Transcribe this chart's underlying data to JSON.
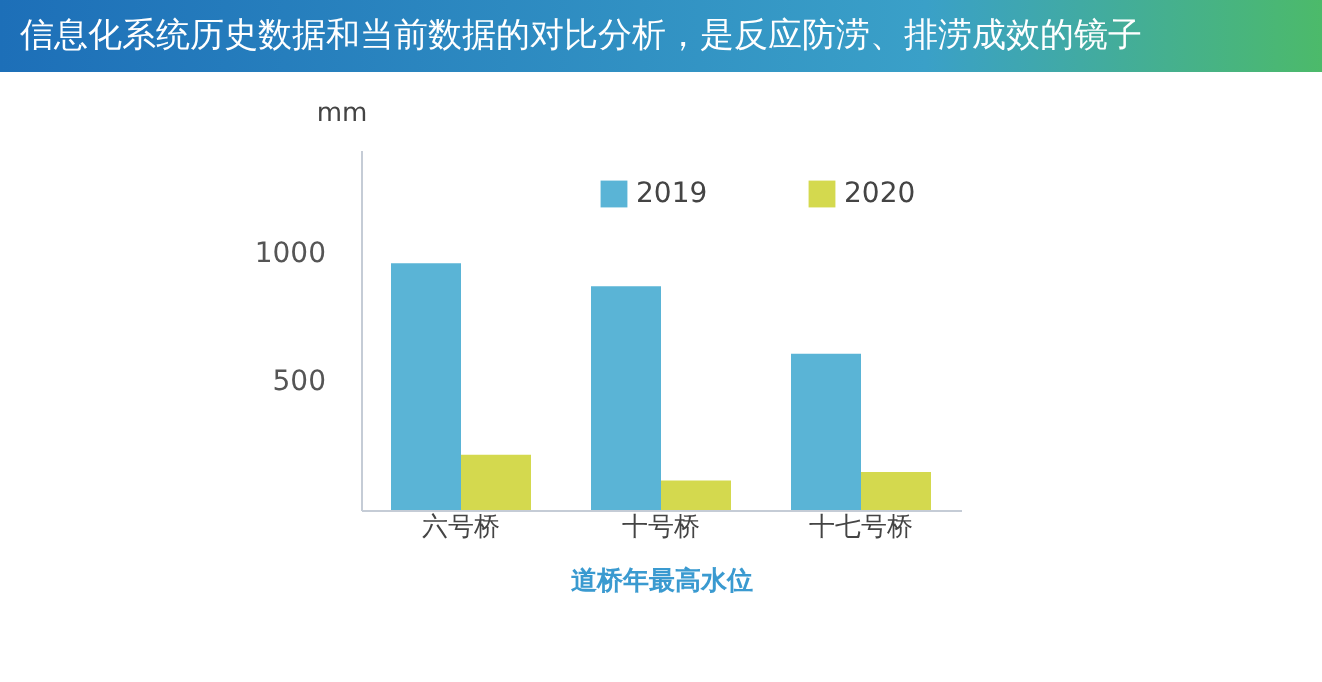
{
  "chart_data": {
    "type": "bar",
    "title": "信息化系统历史数据和当前数据的对比分析，是反应防涝、排涝成效的镜子",
    "xlabel": "道桥年最高水位",
    "ylabel": "mm",
    "categories": [
      "六号桥",
      "十号桥",
      "十七号桥"
    ],
    "series": [
      {
        "name": "2019",
        "color": "#5ab4d6",
        "values": [
          960,
          870,
          608
        ]
      },
      {
        "name": "2020",
        "color": "#d4d94e",
        "values": [
          215,
          115,
          148
        ]
      }
    ],
    "ylim": [
      0,
      1400
    ],
    "yticks": [
      500,
      1000
    ],
    "grid": false,
    "legend": "top"
  }
}
